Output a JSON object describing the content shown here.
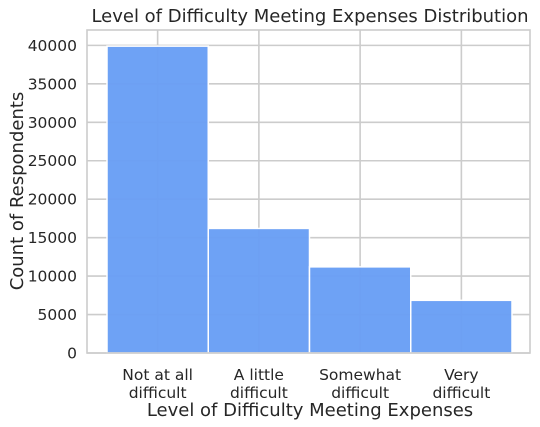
{
  "chart_data": {
    "type": "bar",
    "title": "Level of Difficulty Meeting Expenses Distribution",
    "xlabel": "Level of Difficulty Meeting Expenses",
    "ylabel": "Count of Respondents",
    "categories": [
      [
        "Not at all",
        "difficult"
      ],
      [
        "A little",
        "difficult"
      ],
      [
        "Somewhat",
        "difficult"
      ],
      [
        "Very",
        "difficult"
      ]
    ],
    "values": [
      39900,
      16200,
      11200,
      6850
    ],
    "ylim": [
      0,
      42000
    ],
    "yticks": [
      0,
      5000,
      10000,
      15000,
      20000,
      25000,
      30000,
      35000,
      40000
    ],
    "grid": true,
    "bar_color": "#6a9ff5"
  }
}
